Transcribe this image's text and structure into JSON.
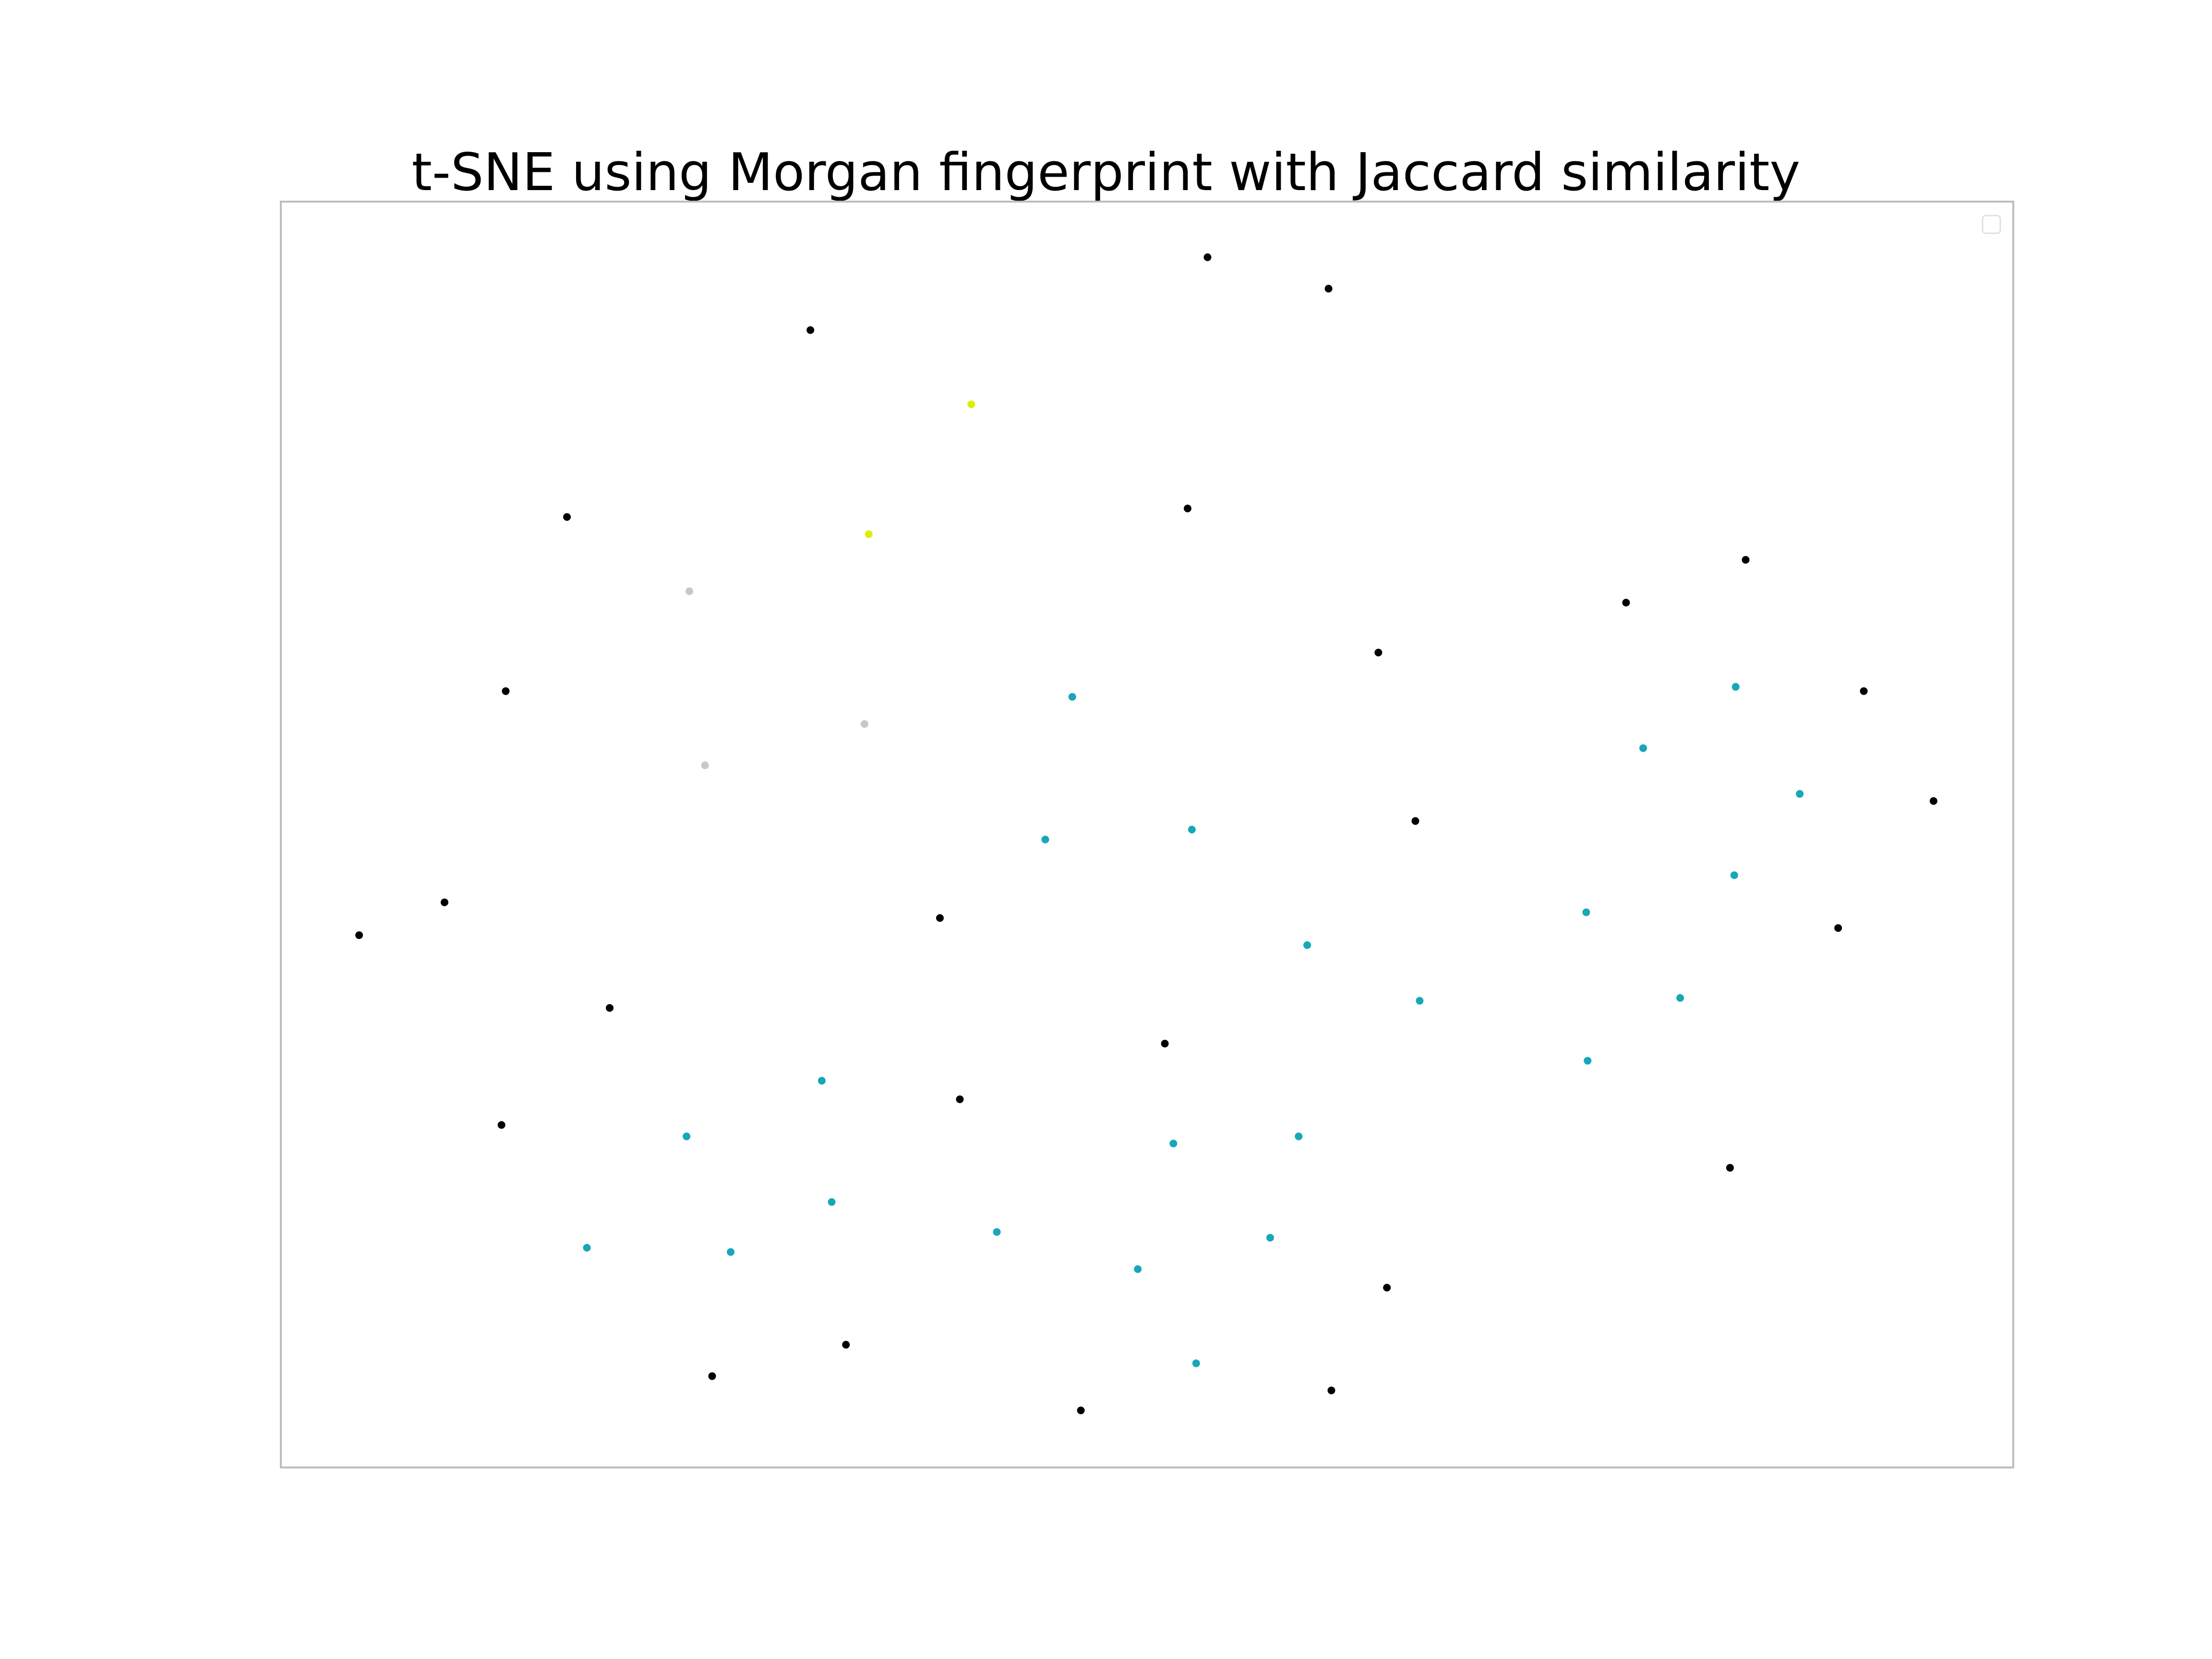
{
  "chart_data": {
    "type": "scatter",
    "title": "t-SNE using Morgan fingerprint with Jaccard similarity",
    "xlabel": "",
    "ylabel": "",
    "xlim": [
      0,
      1217
    ],
    "ylim": [
      0,
      887
    ],
    "axes_visible": false,
    "ticks_visible": false,
    "grid": false,
    "legend": {
      "placement": "top-right",
      "entries": []
    },
    "colors": {
      "black": "#000000",
      "teal": "#17a7b8",
      "yellow": "#dfee00",
      "gray": "#c8c8c8"
    },
    "points": [
      {
        "x": 651,
        "y": 848,
        "color": "black"
      },
      {
        "x": 736,
        "y": 826,
        "color": "black"
      },
      {
        "x": 372,
        "y": 797,
        "color": "black"
      },
      {
        "x": 485,
        "y": 745,
        "color": "yellow"
      },
      {
        "x": 637,
        "y": 672,
        "color": "black"
      },
      {
        "x": 201,
        "y": 666,
        "color": "black"
      },
      {
        "x": 413,
        "y": 654,
        "color": "yellow"
      },
      {
        "x": 1029,
        "y": 636,
        "color": "black"
      },
      {
        "x": 287,
        "y": 614,
        "color": "gray"
      },
      {
        "x": 945,
        "y": 606,
        "color": "black"
      },
      {
        "x": 771,
        "y": 571,
        "color": "black"
      },
      {
        "x": 158,
        "y": 544,
        "color": "black"
      },
      {
        "x": 1022,
        "y": 547,
        "color": "teal"
      },
      {
        "x": 1112,
        "y": 544,
        "color": "black"
      },
      {
        "x": 556,
        "y": 540,
        "color": "teal"
      },
      {
        "x": 410,
        "y": 521,
        "color": "gray"
      },
      {
        "x": 957,
        "y": 504,
        "color": "teal"
      },
      {
        "x": 298,
        "y": 492,
        "color": "gray"
      },
      {
        "x": 1067,
        "y": 472,
        "color": "teal"
      },
      {
        "x": 1161,
        "y": 467,
        "color": "black"
      },
      {
        "x": 797,
        "y": 453,
        "color": "black"
      },
      {
        "x": 640,
        "y": 447,
        "color": "teal"
      },
      {
        "x": 537,
        "y": 440,
        "color": "teal"
      },
      {
        "x": 1021,
        "y": 415,
        "color": "teal"
      },
      {
        "x": 115,
        "y": 396,
        "color": "black"
      },
      {
        "x": 917,
        "y": 389,
        "color": "teal"
      },
      {
        "x": 463,
        "y": 385,
        "color": "black"
      },
      {
        "x": 55,
        "y": 373,
        "color": "black"
      },
      {
        "x": 1094,
        "y": 378,
        "color": "black"
      },
      {
        "x": 721,
        "y": 366,
        "color": "teal"
      },
      {
        "x": 800,
        "y": 327,
        "color": "teal"
      },
      {
        "x": 983,
        "y": 329,
        "color": "teal"
      },
      {
        "x": 231,
        "y": 322,
        "color": "black"
      },
      {
        "x": 621,
        "y": 297,
        "color": "black"
      },
      {
        "x": 918,
        "y": 285,
        "color": "teal"
      },
      {
        "x": 380,
        "y": 271,
        "color": "teal"
      },
      {
        "x": 477,
        "y": 258,
        "color": "black"
      },
      {
        "x": 155,
        "y": 240,
        "color": "black"
      },
      {
        "x": 285,
        "y": 232,
        "color": "teal"
      },
      {
        "x": 715,
        "y": 232,
        "color": "teal"
      },
      {
        "x": 627,
        "y": 227,
        "color": "teal"
      },
      {
        "x": 1018,
        "y": 210,
        "color": "black"
      },
      {
        "x": 387,
        "y": 186,
        "color": "teal"
      },
      {
        "x": 503,
        "y": 165,
        "color": "teal"
      },
      {
        "x": 695,
        "y": 161,
        "color": "teal"
      },
      {
        "x": 215,
        "y": 154,
        "color": "teal"
      },
      {
        "x": 316,
        "y": 151,
        "color": "teal"
      },
      {
        "x": 602,
        "y": 139,
        "color": "teal"
      },
      {
        "x": 777,
        "y": 126,
        "color": "black"
      },
      {
        "x": 397,
        "y": 86,
        "color": "black"
      },
      {
        "x": 643,
        "y": 73,
        "color": "teal"
      },
      {
        "x": 303,
        "y": 64,
        "color": "black"
      },
      {
        "x": 738,
        "y": 54,
        "color": "black"
      },
      {
        "x": 562,
        "y": 40,
        "color": "black"
      }
    ]
  }
}
